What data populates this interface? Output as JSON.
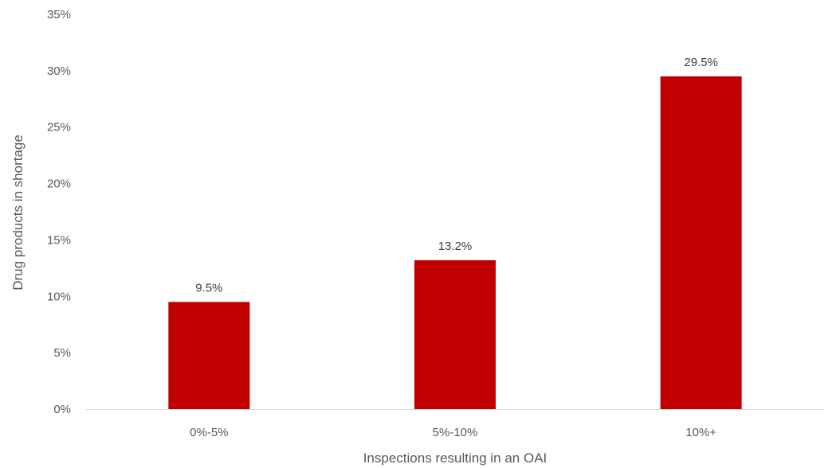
{
  "chart_data": {
    "type": "bar",
    "title": "",
    "xlabel": "Inspections resulting in an OAI",
    "ylabel": "Drug products in shortage",
    "categories": [
      "0%-5%",
      "5%-10%",
      "10%+"
    ],
    "values": [
      9.5,
      13.2,
      29.5
    ],
    "data_labels": [
      "9.5%",
      "13.2%",
      "29.5%"
    ],
    "ylim": [
      0,
      35
    ],
    "yticks": [
      0,
      5,
      10,
      15,
      20,
      25,
      30,
      35
    ],
    "ytick_labels": [
      "0%",
      "5%",
      "10%",
      "15%",
      "20%",
      "25%",
      "30%",
      "35%"
    ],
    "grid": false,
    "legend": "none",
    "bar_color": "#c00000",
    "axis_color": "#d9d9d9"
  }
}
